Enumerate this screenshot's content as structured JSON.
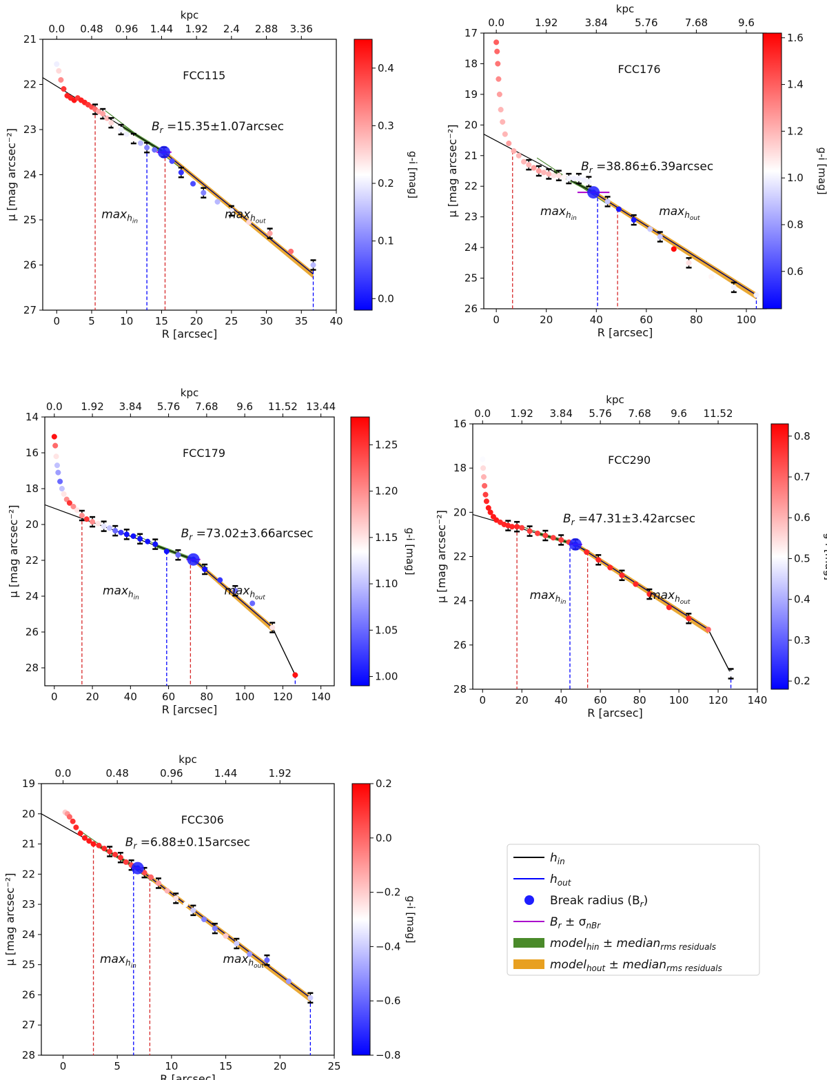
{
  "colors": {
    "hin": "#000000",
    "hout": "#0000ff",
    "break": "#1e1eff",
    "sigma": "#aa00cc",
    "green": "#3a7d1e",
    "orange": "#e8a020",
    "red": "#d62728",
    "blue": "#1f3fff"
  },
  "labels": {
    "max_in_main": "max",
    "max_in_sub": "h",
    "max_in_subsub": "in",
    "max_out_main": "max",
    "max_out_sub": "h",
    "max_out_subsub": "out",
    "br_prefix": "B",
    "br_sub": "r"
  },
  "legend": {
    "items": [
      {
        "type": "line",
        "color": "#000000",
        "main": "h",
        "sub": "in",
        "tail": ""
      },
      {
        "type": "line",
        "color": "#0000ff",
        "main": "h",
        "sub": "out",
        "tail": ""
      },
      {
        "type": "dot",
        "color": "#1e1eff",
        "main": "Break radius (B",
        "sub": "r",
        "tail": ")"
      },
      {
        "type": "line",
        "color": "#aa00cc",
        "main": "B",
        "sub": "r",
        "tail": " ± σ",
        "sub2": "nBr"
      },
      {
        "type": "patch",
        "color": "#4a8a2a",
        "main": "model",
        "sub": "hin",
        "tail": "  ±  median",
        "sub2": "rms residuals"
      },
      {
        "type": "patch",
        "color": "#e8a020",
        "main": "model",
        "sub": "hout",
        "tail": "  ±  median",
        "sub2": "rms residuals"
      }
    ]
  },
  "chart_data": [
    {
      "type": "scatter",
      "id": "FCC115",
      "title": "FCC115",
      "xlabel": "R [arcsec]",
      "ylabel": "μ [mag arcsec⁻²]",
      "top_xlabel": "kpc",
      "cbar_label": "g-i [mag]",
      "xlim": [
        -2,
        40
      ],
      "ylim": [
        27,
        21
      ],
      "xticks": [
        0,
        5,
        10,
        15,
        20,
        25,
        30,
        35,
        40
      ],
      "yticks": [
        21,
        22,
        23,
        24,
        25,
        26,
        27
      ],
      "top_ticks": [
        "0.0",
        "0.48",
        "0.96",
        "1.44",
        "1.92",
        "2.4",
        "2.88",
        "3.36"
      ],
      "kpc_per_arcsec": 0.096,
      "cbar_ticks": [
        "0.0",
        "0.1",
        "0.2",
        "0.3",
        "0.4"
      ],
      "cbar_range": [
        -0.02,
        0.45
      ],
      "br_text": " =15.35±1.07arcsec",
      "break": [
        15.35,
        23.5
      ],
      "sigma": 1.07,
      "max_in": 5.5,
      "break_line": 12.9,
      "max_out": 15.5,
      "end_line": 36.7,
      "hin_line": [
        [
          -2,
          21.85
        ],
        [
          15.35,
          23.5
        ]
      ],
      "hout_line": [
        [
          15.35,
          23.5
        ],
        [
          36.7,
          26.2
        ]
      ],
      "points": [
        [
          0,
          21.55
        ],
        [
          0.3,
          21.7
        ],
        [
          0.6,
          21.9
        ],
        [
          1.0,
          22.1
        ],
        [
          1.5,
          22.25
        ],
        [
          2.0,
          22.3
        ],
        [
          2.5,
          22.35
        ],
        [
          3.0,
          22.3
        ],
        [
          3.5,
          22.35
        ],
        [
          4.0,
          22.4
        ],
        [
          4.5,
          22.45
        ],
        [
          5.0,
          22.5
        ],
        [
          5.5,
          22.55
        ],
        [
          6.0,
          22.6
        ],
        [
          6.6,
          22.65
        ],
        [
          7.2,
          22.75
        ],
        [
          7.8,
          22.85
        ],
        [
          8.5,
          22.95
        ],
        [
          9.2,
          23.0
        ],
        [
          10.0,
          23.1
        ],
        [
          11.0,
          23.2
        ],
        [
          12.0,
          23.3
        ],
        [
          12.9,
          23.4
        ],
        [
          14.0,
          23.45
        ],
        [
          15.35,
          23.5
        ],
        [
          16.5,
          23.7
        ],
        [
          17.8,
          23.95
        ],
        [
          19.5,
          24.2
        ],
        [
          21.0,
          24.4
        ],
        [
          23.0,
          24.6
        ],
        [
          25.0,
          24.8
        ],
        [
          27.5,
          25.05
        ],
        [
          30.5,
          25.3
        ],
        [
          33.5,
          25.7
        ],
        [
          36.7,
          26.0
        ]
      ],
      "colors_gi": [
        0.2,
        0.25,
        0.32,
        0.4,
        0.42,
        0.42,
        0.43,
        0.4,
        0.42,
        0.42,
        0.4,
        0.38,
        0.35,
        0.3,
        0.3,
        0.28,
        0.25,
        0.22,
        0.2,
        0.2,
        0.22,
        0.15,
        0.1,
        0.08,
        0.05,
        0.05,
        0.03,
        0.05,
        0.1,
        0.15,
        0.2,
        0.25,
        0.3,
        0.35,
        0.15
      ]
    },
    {
      "type": "scatter",
      "id": "FCC176",
      "title": "FCC176",
      "xlabel": "R [arcsec]",
      "ylabel": "μ [mag arcsec⁻²]",
      "top_xlabel": "kpc",
      "cbar_label": "g-i [mag]",
      "xlim": [
        -5,
        108
      ],
      "ylim": [
        26,
        17
      ],
      "xticks": [
        0,
        20,
        40,
        60,
        80,
        100
      ],
      "yticks": [
        17,
        18,
        19,
        20,
        21,
        22,
        23,
        24,
        25,
        26
      ],
      "top_ticks": [
        "0.0",
        "1.92",
        "3.84",
        "5.76",
        "7.68",
        "9.6"
      ],
      "kpc_per_arcsec": 0.096,
      "cbar_ticks": [
        "0.6",
        "0.8",
        "1.0",
        "1.2",
        "1.4",
        "1.6"
      ],
      "cbar_range": [
        0.44,
        1.62
      ],
      "br_text": " =38.86±6.39arcsec",
      "break": [
        38.86,
        22.2
      ],
      "sigma": 6.39,
      "max_in": 6.5,
      "break_line": 40.5,
      "max_out": 48.5,
      "end_line": 104,
      "hin_line": [
        [
          -5,
          20.3
        ],
        [
          38.86,
          22.2
        ]
      ],
      "hout_line": [
        [
          38.86,
          22.2
        ],
        [
          104,
          25.55
        ]
      ],
      "points": [
        [
          0,
          17.3
        ],
        [
          0.3,
          17.6
        ],
        [
          0.6,
          18.0
        ],
        [
          0.9,
          18.5
        ],
        [
          1.3,
          19.0
        ],
        [
          1.8,
          19.5
        ],
        [
          2.5,
          19.9
        ],
        [
          3.5,
          20.3
        ],
        [
          5.0,
          20.6
        ],
        [
          7.0,
          20.85
        ],
        [
          9.0,
          21.0
        ],
        [
          11.0,
          21.2
        ],
        [
          13.0,
          21.3
        ],
        [
          15.0,
          21.4
        ],
        [
          17.0,
          21.5
        ],
        [
          19.0,
          21.55
        ],
        [
          21.0,
          21.6
        ],
        [
          23.0,
          21.65
        ],
        [
          25.0,
          21.65
        ],
        [
          27.0,
          21.7
        ],
        [
          29.0,
          21.75
        ],
        [
          31.0,
          21.75
        ],
        [
          33.0,
          21.75
        ],
        [
          35.0,
          21.8
        ],
        [
          37.0,
          21.85
        ],
        [
          38.86,
          22.2
        ],
        [
          44.5,
          22.5
        ],
        [
          49.0,
          22.75
        ],
        [
          55.0,
          23.1
        ],
        [
          61.5,
          23.4
        ],
        [
          65.5,
          23.65
        ],
        [
          71.0,
          24.05
        ],
        [
          77.0,
          24.5
        ],
        [
          86.0,
          24.95
        ],
        [
          95.0,
          25.3
        ],
        [
          104.0,
          25.55
        ]
      ],
      "colors_gi": [
        1.4,
        1.38,
        1.35,
        1.3,
        1.25,
        1.2,
        1.2,
        1.2,
        1.25,
        1.22,
        1.2,
        1.2,
        1.2,
        1.25,
        1.25,
        1.2,
        1.2,
        1.1,
        1.1,
        1.05,
        1.0,
        1.0,
        1.0,
        1.0,
        1.0,
        0.55,
        0.9,
        0.5,
        0.5,
        0.9,
        0.9,
        1.6,
        1.1,
        1.05,
        1.0,
        1.0
      ]
    },
    {
      "type": "scatter",
      "id": "FCC179",
      "title": "FCC179",
      "xlabel": "R [arcsec]",
      "ylabel": "μ [mag arcsec⁻²]",
      "top_xlabel": "kpc",
      "cbar_label": "g-i [mag]",
      "xlim": [
        -5,
        147
      ],
      "ylim": [
        29,
        14
      ],
      "xticks": [
        0,
        20,
        40,
        60,
        80,
        100,
        120,
        140
      ],
      "yticks": [
        14,
        16,
        18,
        20,
        22,
        24,
        26,
        28
      ],
      "top_ticks": [
        "0.0",
        "1.92",
        "3.84",
        "5.76",
        "7.68",
        "9.6",
        "11.52",
        "13.44"
      ],
      "kpc_per_arcsec": 0.096,
      "cbar_ticks": [
        "1.00",
        "1.05",
        "1.10",
        "1.15",
        "1.20",
        "1.25"
      ],
      "cbar_range": [
        0.99,
        1.28
      ],
      "br_text": " =73.02±3.66arcsec",
      "break": [
        73.02,
        21.95
      ],
      "sigma": 3.66,
      "max_in": 14.5,
      "break_line": 59,
      "max_out": 71.5,
      "end_line": 126.5,
      "hin_line": [
        [
          -5,
          18.9
        ],
        [
          73.02,
          21.95
        ]
      ],
      "hout_line": [
        [
          73.02,
          21.95
        ],
        [
          114.5,
          25.75
        ],
        [
          126.5,
          28.4
        ]
      ],
      "points": [
        [
          0,
          15.1
        ],
        [
          0.5,
          15.6
        ],
        [
          1.0,
          16.2
        ],
        [
          1.5,
          16.7
        ],
        [
          2.0,
          17.1
        ],
        [
          3.0,
          17.6
        ],
        [
          4.0,
          18.0
        ],
        [
          5.0,
          18.3
        ],
        [
          6.5,
          18.6
        ],
        [
          8.0,
          18.8
        ],
        [
          10.0,
          19.0
        ],
        [
          12.0,
          19.2
        ],
        [
          14.5,
          19.5
        ],
        [
          17.0,
          19.7
        ],
        [
          20.0,
          19.85
        ],
        [
          23.0,
          19.95
        ],
        [
          26.0,
          20.1
        ],
        [
          29.0,
          20.2
        ],
        [
          32.0,
          20.35
        ],
        [
          35.0,
          20.45
        ],
        [
          38.0,
          20.55
        ],
        [
          41.5,
          20.65
        ],
        [
          45.0,
          20.8
        ],
        [
          49.0,
          20.95
        ],
        [
          53.0,
          21.1
        ],
        [
          59.0,
          21.5
        ],
        [
          65.0,
          21.7
        ],
        [
          73.02,
          21.95
        ],
        [
          79.0,
          22.5
        ],
        [
          87.0,
          23.1
        ],
        [
          95.0,
          23.7
        ],
        [
          104.0,
          24.4
        ],
        [
          114.5,
          25.75
        ],
        [
          126.5,
          28.4
        ]
      ],
      "colors_gi": [
        1.27,
        1.22,
        1.15,
        1.1,
        1.08,
        1.05,
        1.1,
        1.15,
        1.2,
        1.25,
        1.2,
        1.15,
        1.2,
        1.25,
        1.2,
        1.15,
        1.12,
        1.1,
        1.05,
        1.02,
        1.0,
        1.0,
        1.0,
        1.0,
        1.0,
        1.0,
        1.05,
        1.0,
        1.0,
        1.02,
        1.05,
        1.05,
        1.15,
        1.27
      ]
    },
    {
      "type": "scatter",
      "id": "FCC290",
      "title": "FCC290",
      "xlabel": "R [arcsec]",
      "ylabel": "μ [mag arcsec⁻²]",
      "top_xlabel": "kpc",
      "cbar_label": "g-i [mag]",
      "xlim": [
        -5,
        140
      ],
      "ylim": [
        28,
        16
      ],
      "xticks": [
        0,
        20,
        40,
        60,
        80,
        100,
        120,
        140
      ],
      "yticks": [
        16,
        18,
        20,
        22,
        24,
        26,
        28
      ],
      "top_ticks": [
        "0.0",
        "1.92",
        "3.84",
        "5.76",
        "7.68",
        "9.6",
        "11.52"
      ],
      "kpc_per_arcsec": 0.096,
      "cbar_ticks": [
        "0.2",
        "0.3",
        "0.4",
        "0.5",
        "0.6",
        "0.7",
        "0.8"
      ],
      "cbar_range": [
        0.18,
        0.83
      ],
      "br_text": " =47.31±3.42arcsec",
      "break": [
        47.31,
        21.45
      ],
      "sigma": 3.42,
      "max_in": 17.5,
      "break_line": 44.5,
      "max_out": 53.5,
      "end_line": 126.5,
      "hin_line": [
        [
          -5,
          20.1
        ],
        [
          47.31,
          21.45
        ]
      ],
      "hout_line": [
        [
          47.31,
          21.45
        ],
        [
          115,
          25.3
        ],
        [
          126.5,
          27.3
        ]
      ],
      "points": [
        [
          0,
          17.6
        ],
        [
          0.3,
          18.0
        ],
        [
          0.6,
          18.4
        ],
        [
          1.0,
          18.8
        ],
        [
          1.5,
          19.2
        ],
        [
          2.0,
          19.5
        ],
        [
          3.0,
          19.8
        ],
        [
          4.0,
          20.0
        ],
        [
          5.5,
          20.2
        ],
        [
          7.0,
          20.35
        ],
        [
          9.0,
          20.45
        ],
        [
          11.0,
          20.55
        ],
        [
          13.0,
          20.6
        ],
        [
          15.0,
          20.65
        ],
        [
          17.5,
          20.65
        ],
        [
          20.0,
          20.7
        ],
        [
          24.0,
          20.85
        ],
        [
          28.0,
          20.95
        ],
        [
          32.0,
          21.05
        ],
        [
          36.0,
          21.15
        ],
        [
          40.0,
          21.25
        ],
        [
          44.0,
          21.35
        ],
        [
          47.31,
          21.45
        ],
        [
          53.0,
          21.8
        ],
        [
          59.0,
          22.15
        ],
        [
          65.0,
          22.5
        ],
        [
          71.0,
          22.85
        ],
        [
          78.0,
          23.25
        ],
        [
          85.0,
          23.7
        ],
        [
          95.0,
          24.3
        ],
        [
          105.0,
          24.8
        ],
        [
          115.0,
          25.3
        ],
        [
          126.5,
          27.3
        ]
      ],
      "colors_gi": [
        0.5,
        0.55,
        0.6,
        0.7,
        0.75,
        0.78,
        0.8,
        0.8,
        0.8,
        0.8,
        0.78,
        0.78,
        0.78,
        0.78,
        0.78,
        0.75,
        0.75,
        0.75,
        0.75,
        0.75,
        0.75,
        0.75,
        0.2,
        0.78,
        0.78,
        0.78,
        0.78,
        0.78,
        0.78,
        0.78,
        0.78,
        0.7,
        0.5
      ]
    },
    {
      "type": "scatter",
      "id": "FCC306",
      "title": "FCC306",
      "xlabel": "R [arcsec]",
      "ylabel": "μ [mag arcsec⁻²]",
      "top_xlabel": "kpc",
      "cbar_label": "g-i [mag]",
      "xlim": [
        -2,
        25
      ],
      "ylim": [
        28,
        19
      ],
      "xticks": [
        0,
        5,
        10,
        15,
        20,
        25
      ],
      "yticks": [
        19,
        20,
        21,
        22,
        23,
        24,
        25,
        26,
        27,
        28
      ],
      "top_ticks": [
        "0.0",
        "0.48",
        "0.96",
        "1.44",
        "1.92"
      ],
      "kpc_per_arcsec": 0.096,
      "cbar_ticks": [
        "−0.8",
        "−0.6",
        "−0.4",
        "−0.2",
        "0.0",
        "0.2"
      ],
      "cbar_range": [
        -0.8,
        0.2
      ],
      "br_text": " =6.88±0.15arcsec",
      "break": [
        6.88,
        21.8
      ],
      "sigma": 0.15,
      "max_in": 2.8,
      "break_line": 6.5,
      "max_out": 8.0,
      "end_line": 22.8,
      "hin_line": [
        [
          -2,
          20.0
        ],
        [
          6.88,
          21.8
        ]
      ],
      "hout_line": [
        [
          6.88,
          21.8
        ],
        [
          22.8,
          26.1
        ]
      ],
      "points": [
        [
          0.0,
          19.9
        ],
        [
          0.2,
          19.95
        ],
        [
          0.4,
          20.0
        ],
        [
          0.6,
          20.1
        ],
        [
          0.9,
          20.25
        ],
        [
          1.2,
          20.45
        ],
        [
          1.6,
          20.65
        ],
        [
          2.0,
          20.8
        ],
        [
          2.4,
          20.9
        ],
        [
          2.8,
          21.0
        ],
        [
          3.3,
          21.05
        ],
        [
          3.8,
          21.15
        ],
        [
          4.3,
          21.25
        ],
        [
          4.8,
          21.35
        ],
        [
          5.3,
          21.45
        ],
        [
          5.8,
          21.6
        ],
        [
          6.3,
          21.7
        ],
        [
          6.88,
          21.8
        ],
        [
          7.5,
          21.95
        ],
        [
          8.1,
          22.1
        ],
        [
          8.8,
          22.3
        ],
        [
          9.6,
          22.55
        ],
        [
          10.4,
          22.8
        ],
        [
          11.3,
          23.0
        ],
        [
          12.0,
          23.2
        ],
        [
          13.0,
          23.5
        ],
        [
          14.0,
          23.8
        ],
        [
          15.0,
          24.05
        ],
        [
          16.0,
          24.3
        ],
        [
          17.2,
          24.65
        ],
        [
          18.8,
          24.85
        ],
        [
          20.8,
          25.55
        ],
        [
          22.8,
          26.1
        ]
      ],
      "colors_gi": [
        -0.3,
        -0.2,
        -0.1,
        0.0,
        0.1,
        0.12,
        0.15,
        0.15,
        0.15,
        0.15,
        0.12,
        0.12,
        0.1,
        0.1,
        0.1,
        0.08,
        0.05,
        -0.8,
        0.05,
        0.0,
        -0.1,
        -0.15,
        -0.25,
        -0.3,
        -0.4,
        -0.55,
        -0.55,
        -0.2,
        -0.4,
        -0.5,
        -0.6,
        -0.5,
        -0.4
      ]
    }
  ]
}
